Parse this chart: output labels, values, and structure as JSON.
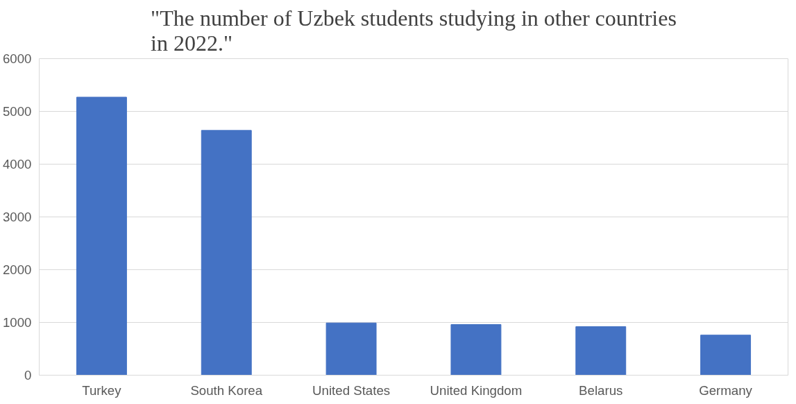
{
  "chart_data": {
    "type": "bar",
    "title": "\"The number of Uzbek students studying in other countries in 2022.\"",
    "categories": [
      "Turkey",
      "South Korea",
      "United States",
      "United Kingdom",
      "Belarus",
      "Germany"
    ],
    "values": [
      5270,
      4640,
      990,
      960,
      920,
      760
    ],
    "color": "#4472c4",
    "ylim": [
      0,
      6000
    ],
    "yticks": [
      0,
      1000,
      2000,
      3000,
      4000,
      5000,
      6000
    ],
    "grid": "y"
  }
}
